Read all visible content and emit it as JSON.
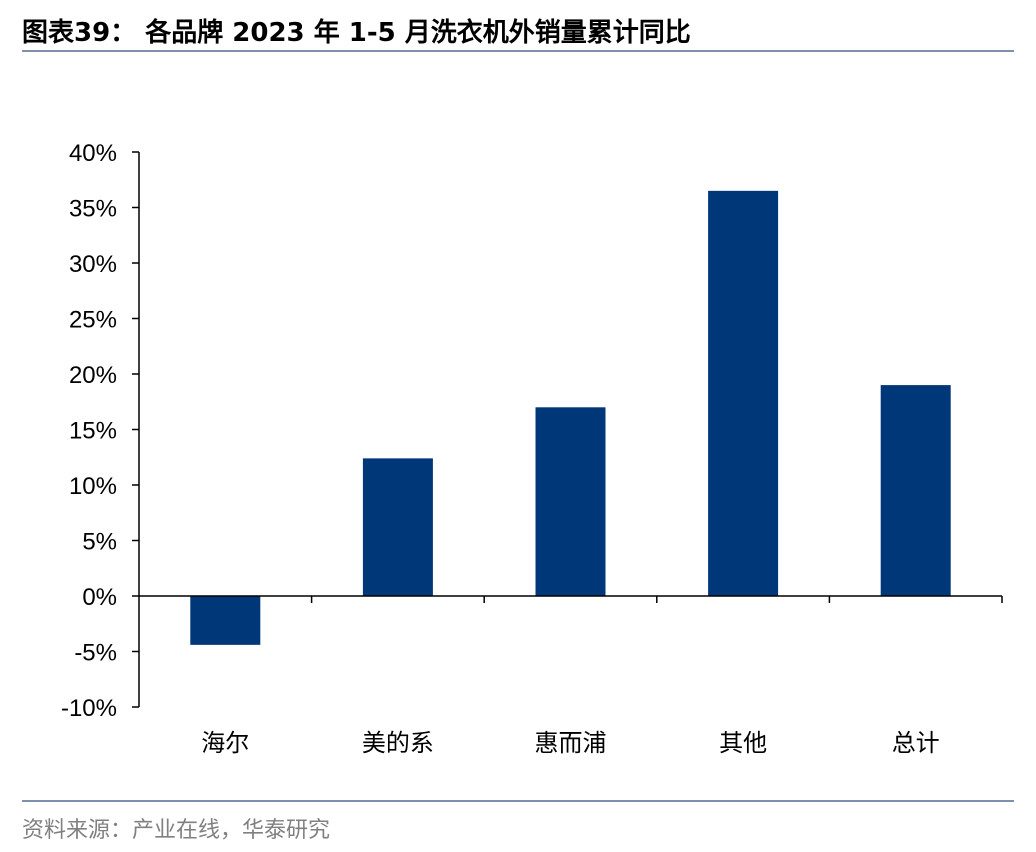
{
  "title": "图表39：  各品牌 2023 年 1-5 月洗衣机外销量累计同比",
  "source": "资料来源：产业在线，华泰研究",
  "colors": {
    "bar": "#003778",
    "rule": "#7f8fae",
    "axis": "#000000",
    "source_text": "#808080"
  },
  "chart_data": {
    "type": "bar",
    "categories": [
      "海尔",
      "美的系",
      "惠而浦",
      "其他",
      "总计"
    ],
    "values": [
      -4.4,
      12.4,
      17.0,
      36.5,
      19.0
    ],
    "unit": "%",
    "ylim": [
      -10,
      40
    ],
    "yticks": [
      -10,
      -5,
      0,
      5,
      10,
      15,
      20,
      25,
      30,
      35,
      40
    ],
    "ytick_labels": [
      "-10%",
      "-5%",
      "0%",
      "5%",
      "10%",
      "15%",
      "20%",
      "25%",
      "30%",
      "35%",
      "40%"
    ],
    "grid": false,
    "legend": "none"
  }
}
